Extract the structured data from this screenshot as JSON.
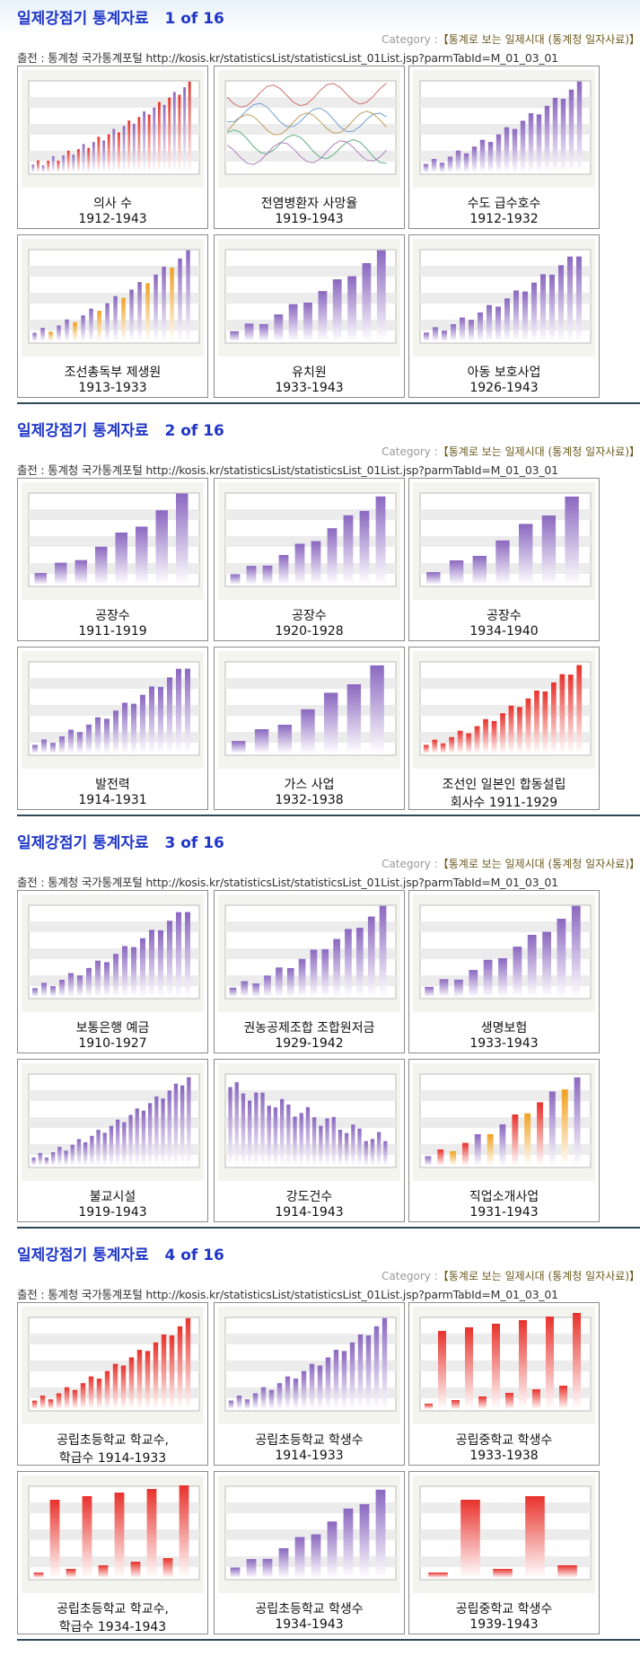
{
  "sections": [
    {
      "title": "일제강점기 통계자료",
      "page": "1 of 16",
      "category_label": "Category :",
      "category": "【통계로 보는 일제시대 (통계청 일자사료)】",
      "source": "출전 : 통계청 국가통계포털 http://kosis.kr/statisticsList/statisticsList_01List.jsp?parmTabId=M_01_03_01",
      "items": [
        {
          "lines": [
            "의사 수",
            "1912-1943"
          ]
        },
        {
          "lines": [
            "전염병환자 사망율",
            "1919-1943"
          ]
        },
        {
          "lines": [
            "수도 급수호수",
            "1912-1932"
          ]
        },
        {
          "lines": [
            "조선총독부 제생원",
            "1913-1933"
          ]
        },
        {
          "lines": [
            "유치원",
            "1933-1943"
          ]
        },
        {
          "lines": [
            "아동 보호사업",
            "1926-1943"
          ]
        }
      ]
    },
    {
      "title": "일제강점기 통계자료",
      "page": "2 of 16",
      "category_label": "Category :",
      "category": "【통계로 보는 일제시대 (통계청 일자사료)】",
      "source": "출전 : 통계청 국가통계포털 http://kosis.kr/statisticsList/statisticsList_01List.jsp?parmTabId=M_01_03_01",
      "items": [
        {
          "lines": [
            "공장수",
            "1911-1919"
          ]
        },
        {
          "lines": [
            "공장수",
            "1920-1928"
          ]
        },
        {
          "lines": [
            "공장수",
            "1934-1940"
          ]
        },
        {
          "lines": [
            "발전력",
            "1914-1931"
          ]
        },
        {
          "lines": [
            "가스 사업",
            "1932-1938"
          ]
        },
        {
          "lines": [
            "조선인 일본인 합동설립",
            "회사수 1911-1929"
          ]
        }
      ]
    },
    {
      "title": "일제강점기 통계자료",
      "page": "3 of 16",
      "category_label": "Category :",
      "category": "【통계로 보는 일제시대 (통계청 일자사료)】",
      "source": "출전 : 통계청 국가통계포털 http://kosis.kr/statisticsList/statisticsList_01List.jsp?parmTabId=M_01_03_01",
      "items": [
        {
          "lines": [
            "보통은행 예금",
            "1910-1927"
          ]
        },
        {
          "lines": [
            "권농공제조합 조합원저금",
            "1929-1942"
          ]
        },
        {
          "lines": [
            "생명보험",
            "1933-1943"
          ]
        },
        {
          "lines": [
            "불교시설",
            "1919-1943"
          ]
        },
        {
          "lines": [
            "강도건수",
            "1914-1943"
          ]
        },
        {
          "lines": [
            "직업소개사업",
            "1931-1943"
          ]
        }
      ]
    },
    {
      "title": "일제강점기 통계자료",
      "page": "4 of 16",
      "category_label": "Category :",
      "category": "【통계로 보는 일제시대 (통계청 일자사료)】",
      "source": "출전 : 통계청 국가통계포털 http://kosis.kr/statisticsList/statisticsList_01List.jsp?parmTabId=M_01_03_01",
      "items": [
        {
          "lines": [
            "공립초등학교 학교수,",
            "학급수 1914-1933"
          ]
        },
        {
          "lines": [
            "공립초등학교 학생수",
            "1914-1933"
          ]
        },
        {
          "lines": [
            "공립중학교 학생수",
            "1933-1938"
          ]
        },
        {
          "lines": [
            "공립초등학교 학교수,",
            "학급수 1934-1943"
          ]
        },
        {
          "lines": [
            "공립초등학교 학생수",
            "1934-1943"
          ]
        },
        {
          "lines": [
            "공립중학교 학생수",
            "1939-1943"
          ]
        }
      ]
    }
  ]
}
